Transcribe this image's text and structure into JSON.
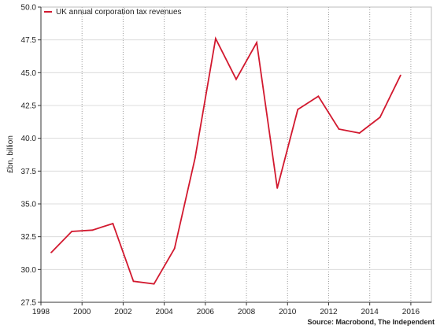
{
  "chart_data": {
    "type": "line",
    "title": "",
    "xlabel": "",
    "ylabel": "£bn, billion",
    "xlim": [
      1998,
      2017
    ],
    "ylim": [
      27.5,
      50.0
    ],
    "xticks": [
      "1998",
      "2000",
      "2002",
      "2004",
      "2006",
      "2008",
      "2010",
      "2012",
      "2014",
      "2016"
    ],
    "yticks": [
      "27.5",
      "30.0",
      "32.5",
      "35.0",
      "37.5",
      "40.0",
      "42.5",
      "45.0",
      "47.5",
      "50.0"
    ],
    "grid": true,
    "legend_position": "top-left",
    "series": [
      {
        "name": "UK annual corporation tax revenues",
        "color": "#d2192f",
        "x": [
          1998.5,
          1999.5,
          2000.5,
          2001.5,
          2002.5,
          2003.5,
          2004.5,
          2005.5,
          2006.5,
          2007.5,
          2008.5,
          2009.5,
          2010.5,
          2011.5,
          2012.5,
          2013.5,
          2014.5,
          2015.5
        ],
        "y": [
          31.3,
          32.9,
          33.0,
          33.5,
          29.1,
          28.9,
          31.6,
          38.5,
          47.6,
          44.5,
          47.3,
          36.2,
          42.2,
          43.2,
          40.7,
          40.4,
          41.6,
          44.8
        ]
      }
    ],
    "source": "Source: Macrobond, The Independent"
  }
}
